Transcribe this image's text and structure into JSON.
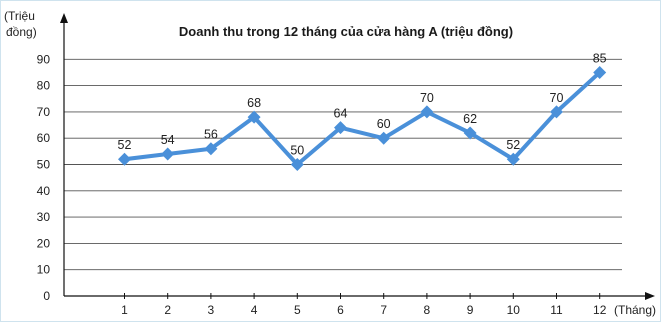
{
  "chart_data": {
    "type": "line",
    "title": "Doanh thu trong 12 tháng của cửa hàng A (triệu đồng)",
    "ylabel_line1": "(Triệu",
    "ylabel_line2": "đồng)",
    "xlabel": "(Tháng)",
    "categories": [
      1,
      2,
      3,
      4,
      5,
      6,
      7,
      8,
      9,
      10,
      11,
      12
    ],
    "values": [
      52,
      54,
      56,
      68,
      50,
      64,
      60,
      70,
      62,
      52,
      70,
      85
    ],
    "yticks": [
      0,
      10,
      20,
      30,
      40,
      50,
      60,
      70,
      80,
      90
    ],
    "ylim": [
      0,
      100
    ],
    "grid": true,
    "line_color": "#4a90d9",
    "grid_color": "#555555",
    "axis_color": "#111111"
  }
}
